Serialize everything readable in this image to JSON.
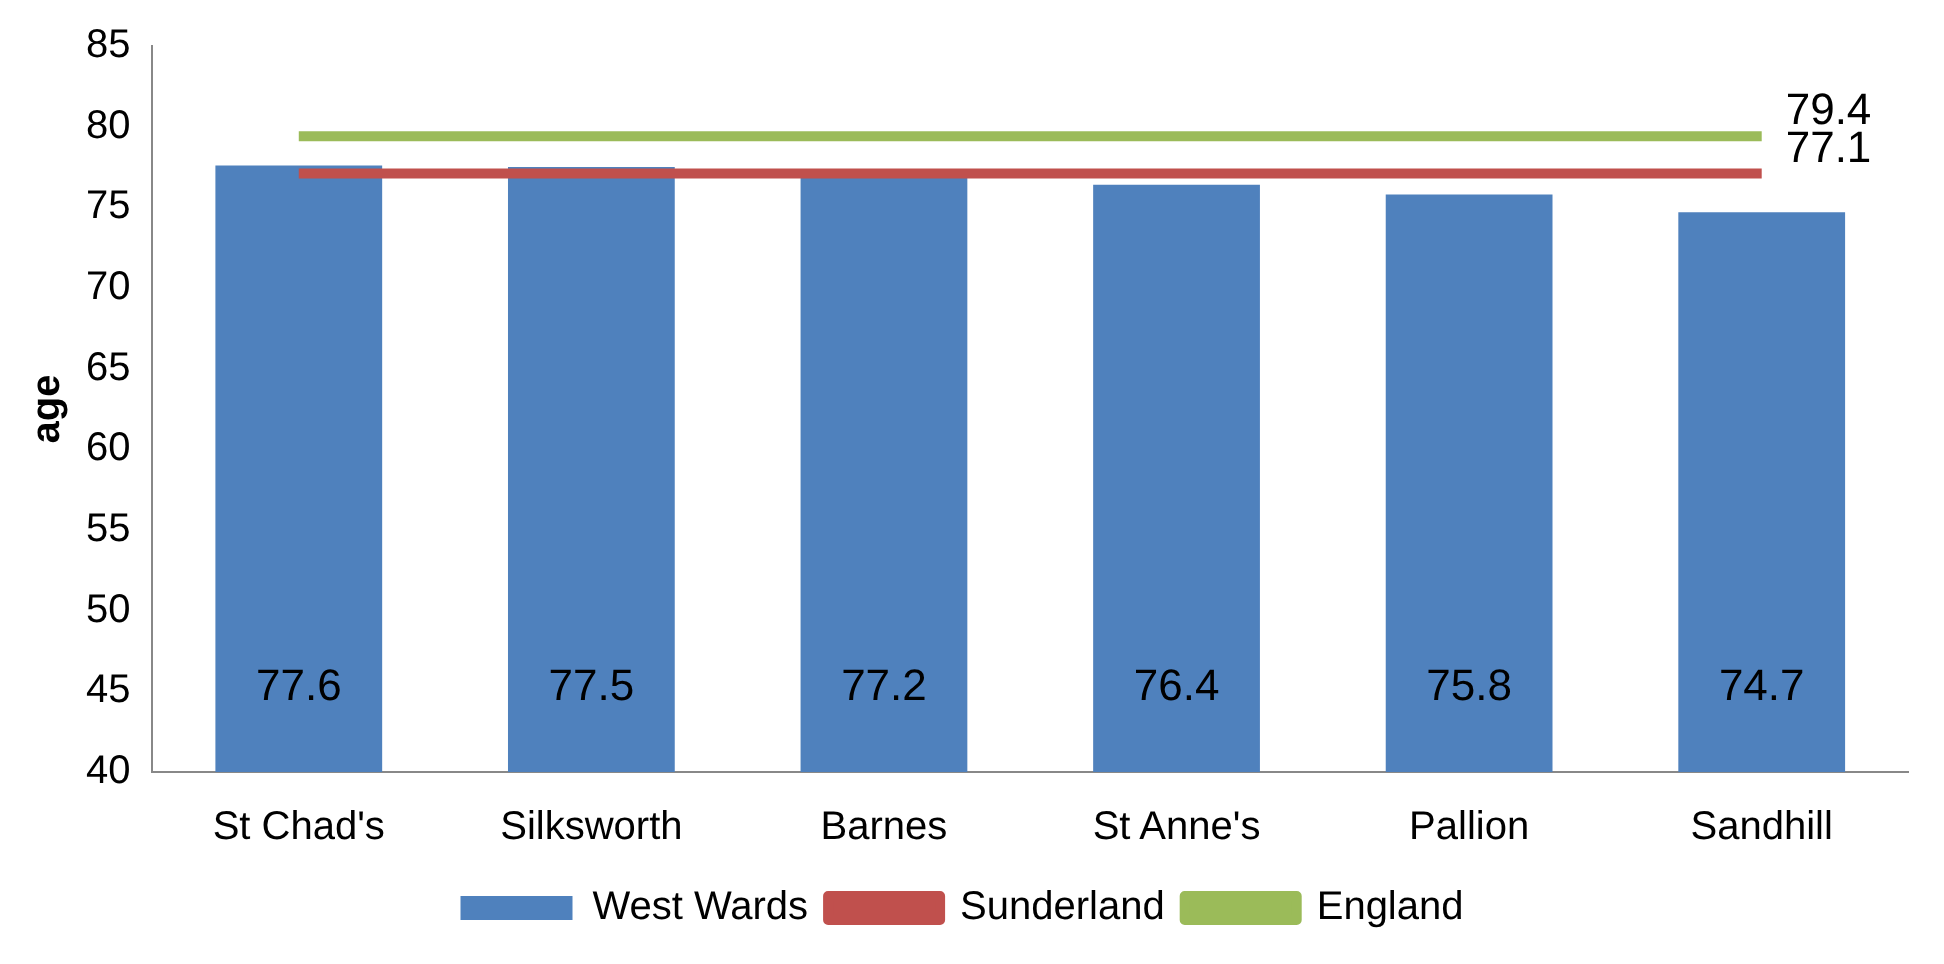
{
  "chart_data": {
    "type": "bar",
    "ylabel": "age",
    "categories": [
      "St Chad's",
      "Silksworth",
      "Barnes",
      "St Anne's",
      "Pallion",
      "Sandhill"
    ],
    "series": [
      {
        "name": "West Wards",
        "color": "#4f81bd",
        "values": [
          77.6,
          77.5,
          77.2,
          76.4,
          75.8,
          74.7
        ],
        "value_labels": [
          "77.6",
          "77.5",
          "77.2",
          "76.4",
          "75.8",
          "74.7"
        ]
      },
      {
        "name": "Sunderland",
        "type": "line",
        "color": "#c0504d",
        "values": [
          77.1,
          77.1,
          77.1,
          77.1,
          77.1,
          77.1
        ],
        "value_labels": [
          null,
          null,
          null,
          null,
          null,
          "77.1"
        ]
      },
      {
        "name": "England",
        "type": "line",
        "color": "#9bbb59",
        "values": [
          79.4,
          79.4,
          79.4,
          79.4,
          79.4,
          79.4
        ],
        "value_labels": [
          null,
          null,
          null,
          null,
          null,
          "79.4"
        ]
      }
    ],
    "ylim": [
      40,
      85
    ],
    "yticks": [
      40,
      45,
      50,
      55,
      60,
      65,
      70,
      75,
      80,
      85
    ],
    "grid": false,
    "legend": "bottom",
    "marker": "none"
  }
}
